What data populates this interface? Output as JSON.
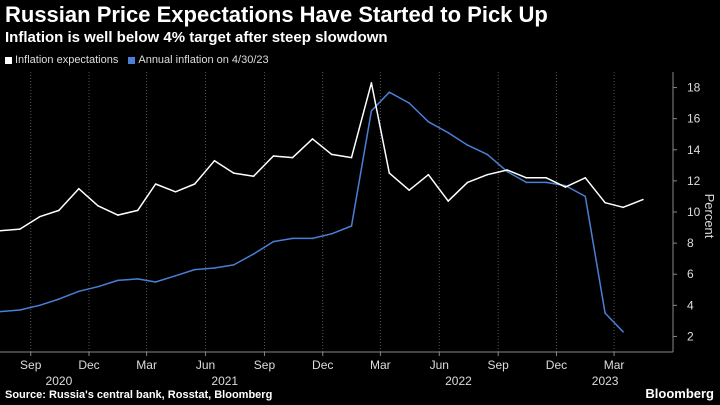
{
  "header": {
    "title": "Russian Price Expectations Have Started to Pick Up",
    "subtitle": "Inflation is well below 4% target after steep slowdown"
  },
  "footer": {
    "source": "Source: Russia's central bank, Rosstat, Bloomberg",
    "brand": "Bloomberg"
  },
  "colors": {
    "background": "#000000",
    "expectations": "#ffffff",
    "inflation": "#4a7fd6",
    "grid": "#555555",
    "axis_text": "#dddddd"
  },
  "chart_data": {
    "type": "line",
    "ylabel": "Percent",
    "ylim": [
      1,
      19
    ],
    "yticks": [
      2,
      4,
      6,
      8,
      10,
      12,
      14,
      16,
      18
    ],
    "xlim": [
      "2020-07-15",
      "2023-06-01"
    ],
    "grid": "vertical dotted lines at each labeled month",
    "legend_position": "top-left",
    "x_ticks": [
      {
        "date": "2020-09-01",
        "label": "Sep"
      },
      {
        "date": "2020-12-01",
        "label": "Dec"
      },
      {
        "date": "2021-03-01",
        "label": "Mar"
      },
      {
        "date": "2021-06-01",
        "label": "Jun"
      },
      {
        "date": "2021-09-01",
        "label": "Sep"
      },
      {
        "date": "2021-12-01",
        "label": "Dec"
      },
      {
        "date": "2022-03-01",
        "label": "Mar"
      },
      {
        "date": "2022-06-01",
        "label": "Jun"
      },
      {
        "date": "2022-09-01",
        "label": "Sep"
      },
      {
        "date": "2022-12-01",
        "label": "Dec"
      },
      {
        "date": "2023-03-01",
        "label": "Mar"
      }
    ],
    "year_labels": [
      {
        "date": "2020-10-15",
        "label": "2020"
      },
      {
        "date": "2021-07-01",
        "label": "2021"
      },
      {
        "date": "2022-07-01",
        "label": "2022"
      },
      {
        "date": "2023-02-15",
        "label": "2023"
      }
    ],
    "series": [
      {
        "name": "Inflation expectations",
        "color": "#ffffff",
        "points": [
          [
            "2020-07-15",
            8.8
          ],
          [
            "2020-08-15",
            8.9
          ],
          [
            "2020-09-15",
            9.7
          ],
          [
            "2020-10-15",
            10.1
          ],
          [
            "2020-11-15",
            11.5
          ],
          [
            "2020-12-15",
            10.4
          ],
          [
            "2021-01-15",
            9.8
          ],
          [
            "2021-02-15",
            10.1
          ],
          [
            "2021-03-15",
            11.8
          ],
          [
            "2021-04-15",
            11.3
          ],
          [
            "2021-05-15",
            11.8
          ],
          [
            "2021-06-15",
            13.3
          ],
          [
            "2021-07-15",
            12.5
          ],
          [
            "2021-08-15",
            12.3
          ],
          [
            "2021-09-15",
            13.6
          ],
          [
            "2021-10-15",
            13.5
          ],
          [
            "2021-11-15",
            14.7
          ],
          [
            "2021-12-15",
            13.7
          ],
          [
            "2022-01-15",
            13.5
          ],
          [
            "2022-02-15",
            18.3
          ],
          [
            "2022-03-15",
            12.5
          ],
          [
            "2022-04-15",
            11.4
          ],
          [
            "2022-05-15",
            12.4
          ],
          [
            "2022-06-15",
            10.7
          ],
          [
            "2022-07-15",
            11.9
          ],
          [
            "2022-08-15",
            12.4
          ],
          [
            "2022-09-15",
            12.7
          ],
          [
            "2022-10-15",
            12.2
          ],
          [
            "2022-11-15",
            12.2
          ],
          [
            "2022-12-15",
            11.6
          ],
          [
            "2023-01-15",
            12.2
          ],
          [
            "2023-02-15",
            10.6
          ],
          [
            "2023-03-15",
            10.3
          ],
          [
            "2023-04-15",
            10.8
          ]
        ]
      },
      {
        "name": "Annual inflation on 4/30/23",
        "color": "#4a7fd6",
        "points": [
          [
            "2020-07-15",
            3.6
          ],
          [
            "2020-08-15",
            3.7
          ],
          [
            "2020-09-15",
            4.0
          ],
          [
            "2020-10-15",
            4.4
          ],
          [
            "2020-11-15",
            4.9
          ],
          [
            "2020-12-15",
            5.2
          ],
          [
            "2021-01-15",
            5.6
          ],
          [
            "2021-02-15",
            5.7
          ],
          [
            "2021-03-15",
            5.5
          ],
          [
            "2021-04-15",
            5.9
          ],
          [
            "2021-05-15",
            6.3
          ],
          [
            "2021-06-15",
            6.4
          ],
          [
            "2021-07-15",
            6.6
          ],
          [
            "2021-08-15",
            7.3
          ],
          [
            "2021-09-15",
            8.1
          ],
          [
            "2021-10-15",
            8.3
          ],
          [
            "2021-11-15",
            8.3
          ],
          [
            "2021-12-15",
            8.6
          ],
          [
            "2022-01-15",
            9.1
          ],
          [
            "2022-02-15",
            16.5
          ],
          [
            "2022-03-15",
            17.7
          ],
          [
            "2022-04-15",
            17.0
          ],
          [
            "2022-05-15",
            15.8
          ],
          [
            "2022-06-15",
            15.1
          ],
          [
            "2022-07-15",
            14.3
          ],
          [
            "2022-08-15",
            13.7
          ],
          [
            "2022-09-15",
            12.6
          ],
          [
            "2022-10-15",
            11.9
          ],
          [
            "2022-11-15",
            11.9
          ],
          [
            "2022-12-15",
            11.7
          ],
          [
            "2023-01-15",
            11.0
          ],
          [
            "2023-02-15",
            3.5
          ],
          [
            "2023-03-15",
            2.3
          ]
        ]
      }
    ]
  }
}
